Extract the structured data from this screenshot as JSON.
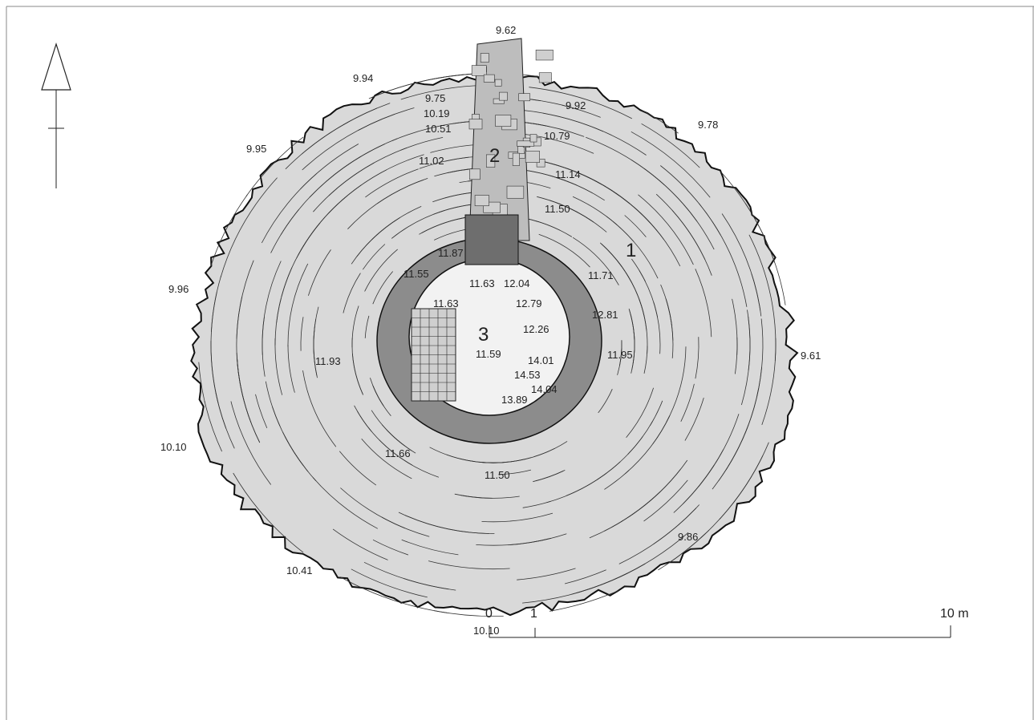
{
  "elevations": [
    "9.62",
    "9.94",
    "9.75",
    "9.92",
    "10.19",
    "10.51",
    "10.79",
    "9.78",
    "9.95",
    "11.02",
    "11.14",
    "11.50",
    "11.87",
    "11.55",
    "11.63",
    "12.04",
    "11.71",
    "9.96",
    "11.63",
    "12.79",
    "12.81",
    "12.26",
    "11.95",
    "11.59",
    "9.61",
    "11.93",
    "14.01",
    "14.53",
    "14.04",
    "13.89",
    "11.66",
    "10.10",
    "11.50",
    "9.86",
    "10.41",
    "10.10"
  ],
  "zones": [
    "1",
    "2",
    "3"
  ],
  "scale": {
    "labels": [
      "0",
      "1",
      "10 m"
    ]
  }
}
